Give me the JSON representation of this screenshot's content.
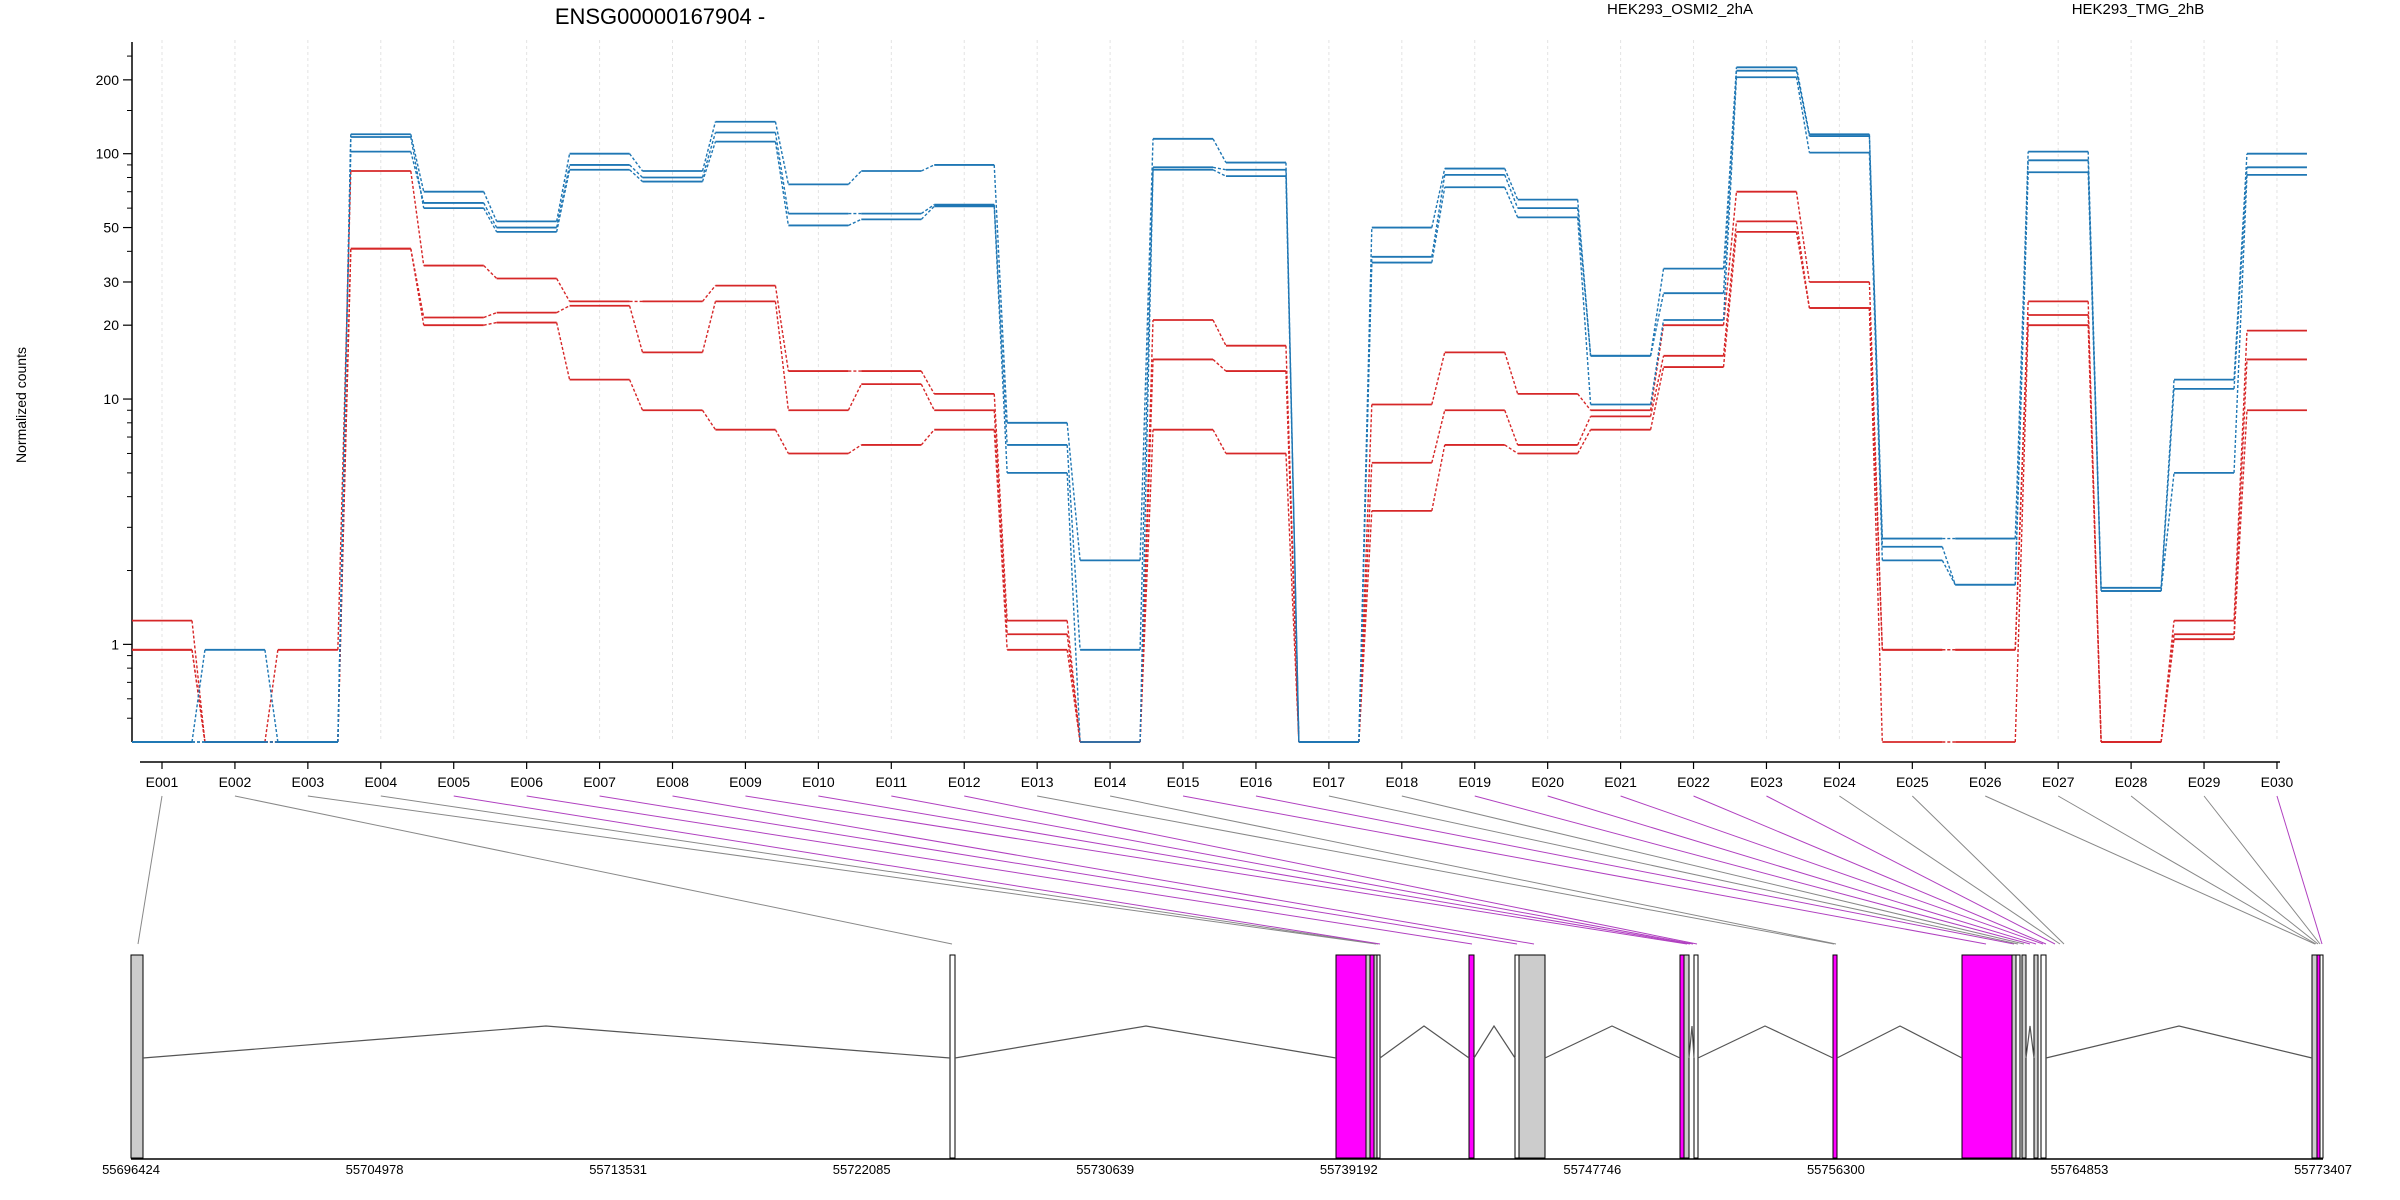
{
  "chart_data": {
    "type": "line",
    "title": "ENSG00000167904 -",
    "ylabel": "Normalized counts",
    "xlabel": "",
    "yscale": "log",
    "ylim": [
      0.4,
      280
    ],
    "y_ticks": [
      1,
      10,
      20,
      30,
      50,
      100,
      200
    ],
    "y_tick_labels": [
      "1",
      "10",
      "20",
      "30",
      "50",
      "100",
      "200"
    ],
    "legend": [
      {
        "label": "HEK293_OSMI2_2hA",
        "color": "#d62728"
      },
      {
        "label": "HEK293_TMG_2hB",
        "color": "#1f77b4"
      }
    ],
    "categories": [
      "E001",
      "E002",
      "E003",
      "E004",
      "E005",
      "E006",
      "E007",
      "E008",
      "E009",
      "E010",
      "E011",
      "E012",
      "E013",
      "E014",
      "E015",
      "E016",
      "E017",
      "E018",
      "E019",
      "E020",
      "E021",
      "E022",
      "E023",
      "E024",
      "E025",
      "E026",
      "E027",
      "E028",
      "E029",
      "E030"
    ],
    "series": [
      {
        "group": "HEK293_OSMI2_2hA",
        "color": "#d62728",
        "values": [
          1.25,
          0.4,
          0.95,
          85,
          35,
          31,
          25,
          25,
          29,
          13,
          13,
          10.5,
          1.25,
          0.4,
          21,
          16.5,
          0.4,
          9.5,
          15.5,
          10.5,
          9.0,
          20,
          70,
          30,
          0.95,
          0.95,
          25,
          0.4,
          1.25,
          19
        ]
      },
      {
        "group": "HEK293_OSMI2_2hA",
        "color": "#d62728",
        "values": [
          0.95,
          0.4,
          0.4,
          41,
          21.5,
          22.5,
          24,
          15.5,
          25,
          9.0,
          11.5,
          9.0,
          1.1,
          0.4,
          14.5,
          13,
          0.4,
          5.5,
          9.0,
          6.5,
          8.5,
          15,
          53,
          23.5,
          0.95,
          0.95,
          22,
          0.4,
          1.1,
          14.5
        ]
      },
      {
        "group": "HEK293_OSMI2_2hA",
        "color": "#d62728",
        "values": [
          0.95,
          0.4,
          0.4,
          41,
          20,
          20.5,
          12,
          9.0,
          7.5,
          6.0,
          6.5,
          7.5,
          0.95,
          0.4,
          7.5,
          6.0,
          0.4,
          3.5,
          6.5,
          6.0,
          7.5,
          13.5,
          48,
          23.5,
          0.4,
          0.4,
          20,
          0.4,
          1.05,
          9.0
        ]
      },
      {
        "group": "HEK293_TMG_2hB",
        "color": "#1f77b4",
        "values": [
          0.4,
          0.95,
          0.4,
          120,
          70,
          53,
          100,
          85,
          135,
          75,
          85,
          90,
          8.0,
          2.2,
          115,
          92,
          0.4,
          50,
          87,
          65,
          15,
          34,
          225,
          120,
          2.7,
          2.7,
          102,
          1.7,
          12,
          100
        ]
      },
      {
        "group": "HEK293_TMG_2hB",
        "color": "#1f77b4",
        "values": [
          0.4,
          0.4,
          0.4,
          102,
          63,
          50,
          90,
          80,
          122,
          57,
          57,
          62,
          6.5,
          0.95,
          88,
          86,
          0.4,
          38,
          82,
          60,
          15,
          27,
          218,
          118,
          2.5,
          1.75,
          94,
          1.65,
          11,
          88
        ]
      },
      {
        "group": "HEK293_TMG_2hB",
        "color": "#1f77b4",
        "values": [
          0.4,
          0.4,
          0.4,
          117,
          60,
          48,
          86,
          77,
          112,
          51,
          54,
          61,
          5.0,
          0.4,
          86,
          81,
          0.4,
          36,
          73,
          55,
          9.5,
          21,
          205,
          101,
          2.2,
          1.75,
          84,
          1.65,
          5.0,
          82
        ]
      }
    ],
    "genomic_axis": {
      "tick_labels": [
        "55696424",
        "55704978",
        "55713531",
        "55722085",
        "55730639",
        "55739192",
        "55747746",
        "55756300",
        "55764853",
        "55773407"
      ]
    }
  }
}
